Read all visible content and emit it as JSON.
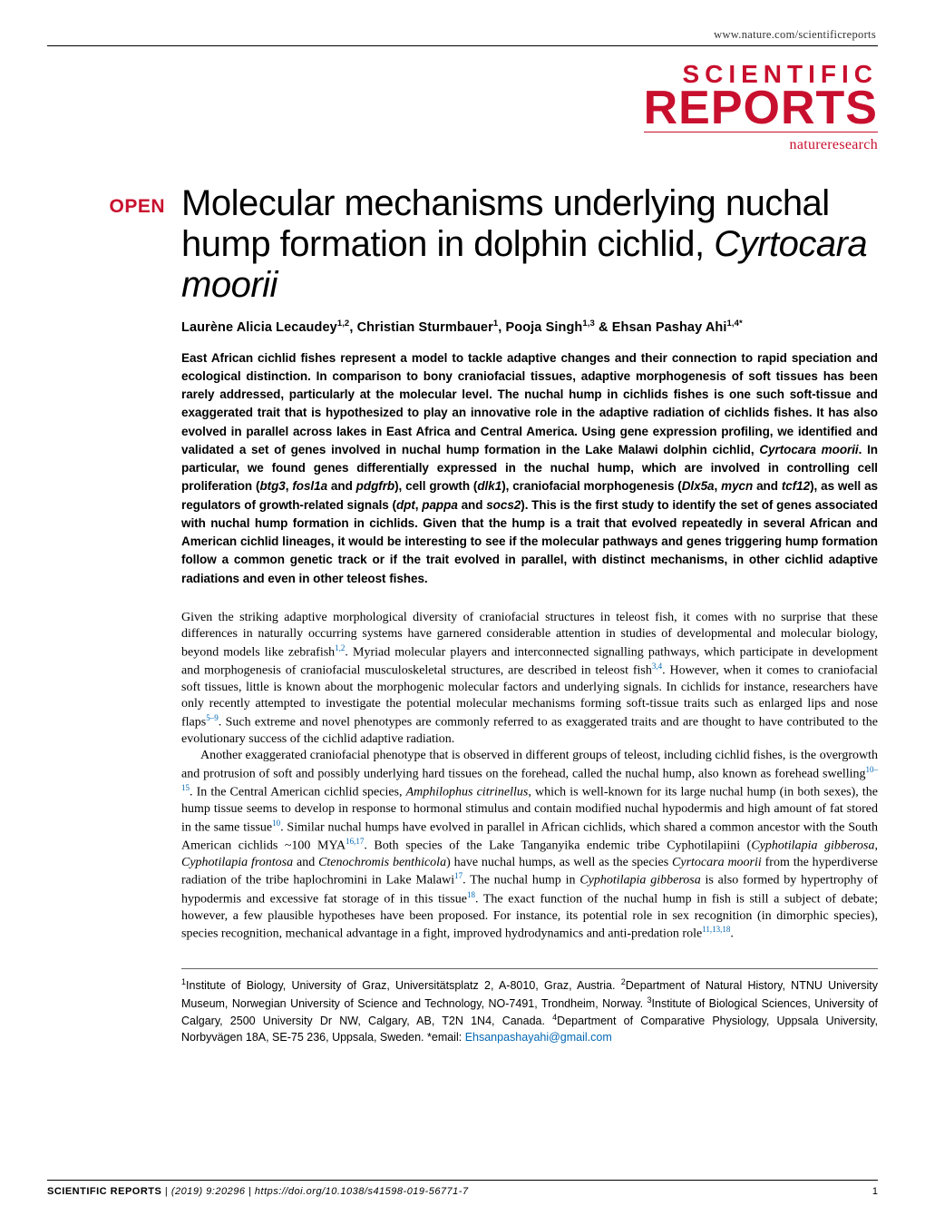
{
  "header": {
    "url": "www.nature.com/scientificreports"
  },
  "logo": {
    "line1": "SCIENTIFIC",
    "line2": "REPORTS",
    "subbrand": "natureresearch"
  },
  "badge": {
    "open": "OPEN"
  },
  "article": {
    "title_pre": "Molecular mechanisms underlying nuchal hump formation in dolphin cichlid, ",
    "title_italic": "Cyrtocara moorii",
    "authors_html": "Laurène Alicia Lecaudey<sup>1,2</sup>, Christian Sturmbauer<sup>1</sup>, Pooja Singh<sup>1,3</sup> & Ehsan Pashay Ahi<sup>1,4*</sup>",
    "abstract_html": "East African cichlid fishes represent a model to tackle adaptive changes and their connection to rapid speciation and ecological distinction. In comparison to bony craniofacial tissues, adaptive morphogenesis of soft tissues has been rarely addressed, particularly at the molecular level. The nuchal hump in cichlids fishes is one such soft-tissue and exaggerated trait that is hypothesized to play an innovative role in the adaptive radiation of cichlids fishes. It has also evolved in parallel across lakes in East Africa and Central America. Using gene expression profiling, we identified and validated a set of genes involved in nuchal hump formation in the Lake Malawi dolphin cichlid, <em>Cyrtocara moorii</em>. In particular, we found genes differentially expressed in the nuchal hump, which are involved in controlling cell proliferation (<em>btg3</em>, <em>fosl1a</em> and <em>pdgfrb</em>), cell growth (<em>dlk1</em>), craniofacial morphogenesis (<em>Dlx5a</em>, <em>mycn</em> and <em>tcf12</em>), as well as regulators of growth-related signals (<em>dpt</em>, <em>pappa</em> and <em>socs2</em>). This is the first study to identify the set of genes associated with nuchal hump formation in cichlids. Given that the hump is a trait that evolved repeatedly in several African and American cichlid lineages, it would be interesting to see if the molecular pathways and genes triggering hump formation follow a common genetic track or if the trait evolved in parallel, with distinct mechanisms, in other cichlid adaptive radiations and even in other teleost fishes.",
    "body_p1_html": "Given the striking adaptive morphological diversity of craniofacial structures in teleost fish, it comes with no surprise that these differences in naturally occurring systems have garnered considerable attention in studies of developmental and molecular biology, beyond models like zebrafish<sup class=\"ref\">1,2</sup>. Myriad molecular players and interconnected signalling pathways, which participate in development and morphogenesis of craniofacial musculoskeletal structures, are described in teleost fish<sup class=\"ref\">3,4</sup>. However, when it comes to craniofacial soft tissues, little is known about the morphogenic molecular factors and underlying signals. In cichlids for instance, researchers have only recently attempted to investigate the potential molecular mechanisms forming soft-tissue traits such as enlarged lips and nose flaps<sup class=\"ref\">5–9</sup>. Such extreme and novel phenotypes are commonly referred to as exaggerated traits and are thought to have contributed to the evolutionary success of the cichlid adaptive radiation.",
    "body_p2_html": "Another exaggerated craniofacial phenotype that is observed in different groups of teleost, including cichlid fishes, is the overgrowth and protrusion of soft and possibly underlying hard tissues on the forehead, called the nuchal hump, also known as forehead swelling<sup class=\"ref\">10–15</sup>. In the Central American cichlid species, <em>Amphilophus citrinellus</em>, which is well-known for its large nuchal hump (in both sexes), the hump tissue seems to develop in response to hormonal stimulus and contain modified nuchal hypodermis and high amount of fat stored in the same tissue<sup class=\"ref\">10</sup>. Similar nuchal humps have evolved in parallel in African cichlids, which shared a common ancestor with the South American cichlids ~100 MYA<sup class=\"ref\">16,17</sup>. Both species of the Lake Tanganyika endemic tribe Cyphotilapiini (<em>Cyphotilapia gibberosa</em>, <em>Cyphotilapia frontosa</em> and <em>Ctenochromis benthicola</em>) have nuchal humps, as well as the species <em>Cyrtocara moorii</em> from the hyperdiverse radiation of the tribe haplochromini in Lake Malawi<sup class=\"ref\">17</sup>. The nuchal hump in <em>Cyphotilapia gibberosa</em> is also formed by hypertrophy of hypodermis and excessive fat storage of in this tissue<sup class=\"ref\">18</sup>. The exact function of the nuchal hump in fish is still a subject of debate; however, a few plausible hypotheses have been proposed. For instance, its potential role in sex recognition (in dimorphic species), species recognition, mechanical advantage in a fight, improved hydrodynamics and anti-predation role<sup class=\"ref\">11,13,18</sup>.",
    "affiliations_html": "<sup>1</sup>Institute of Biology, University of Graz, Universitätsplatz 2, A-8010, Graz, Austria. <sup>2</sup>Department of Natural History, NTNU University Museum, Norwegian University of Science and Technology, NO-7491, Trondheim, Norway. <sup>3</sup>Institute of Biological Sciences, University of Calgary, 2500 University Dr NW, Calgary, AB, T2N 1N4, Canada. <sup>4</sup>Department of Comparative Physiology, Uppsala University, Norbyvägen 18A, SE-75 236, Uppsala, Sweden. *email: <span class=\"email\">Ehsanpashayahi@gmail.com</span>"
  },
  "footer": {
    "journal": "SCIENTIFIC REPORTS",
    "sep": " | ",
    "citation": "(2019) 9:20296 | https://doi.org/10.1038/s41598-019-56771-7",
    "page": "1"
  },
  "colors": {
    "brand_red": "#c8102e",
    "link_blue": "#0066b3",
    "text": "#000000",
    "rule": "#000000"
  }
}
